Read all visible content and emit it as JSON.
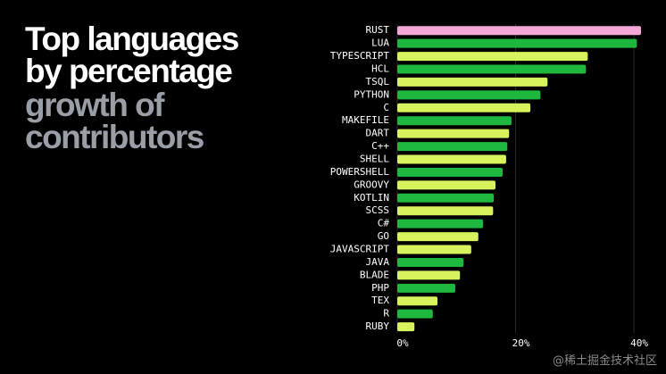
{
  "chart_data": {
    "type": "barh",
    "title": "Top languages by percentage",
    "subtitle": "growth of contributors",
    "categories": [
      "RUST",
      "LUA",
      "TYPESCRIPT",
      "HCL",
      "TSQL",
      "PYTHON",
      "C",
      "MAKEFILE",
      "DART",
      "C++",
      "SHELL",
      "POWERSHELL",
      "GROOVY",
      "KOTLIN",
      "SCSS",
      "C#",
      "GO",
      "JAVASCRIPT",
      "JAVA",
      "BLADE",
      "PHP",
      "TEX",
      "R",
      "RUBY"
    ],
    "values": [
      41.2,
      40.5,
      32.2,
      31.9,
      25.4,
      24.2,
      22.5,
      19.3,
      18.9,
      18.6,
      18.4,
      17.8,
      16.6,
      16.3,
      16.2,
      14.5,
      13.7,
      12.5,
      11.2,
      10.6,
      9.8,
      6.8,
      6.0,
      2.9
    ],
    "colors": [
      "#f5a8d8",
      "#1fb83e",
      "#d6f25c",
      "#1fb83e",
      "#d6f25c",
      "#1fb83e",
      "#d6f25c",
      "#1fb83e",
      "#d6f25c",
      "#1fb83e",
      "#d6f25c",
      "#1fb83e",
      "#d6f25c",
      "#1fb83e",
      "#d6f25c",
      "#1fb83e",
      "#d6f25c",
      "#d6f25c",
      "#1fb83e",
      "#d6f25c",
      "#1fb83e",
      "#d6f25c",
      "#1fb83e",
      "#d6f25c"
    ],
    "xlim": [
      0,
      41.5
    ],
    "xticks": [
      {
        "value": 0,
        "label": "0%"
      },
      {
        "value": 20,
        "label": "20%"
      },
      {
        "value": 40,
        "label": "40%"
      }
    ],
    "grid": true,
    "watermark": "@稀土掘金技术社区"
  }
}
